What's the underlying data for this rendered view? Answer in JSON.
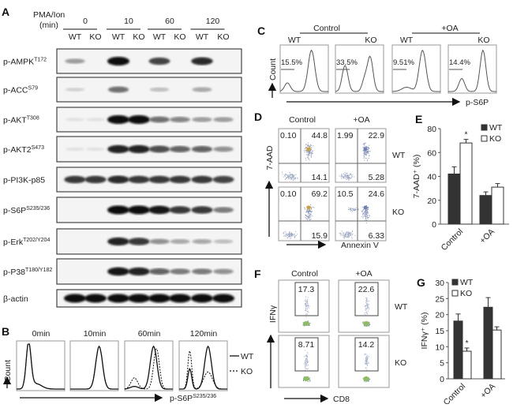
{
  "panel_labels": {
    "a": "A",
    "b": "B",
    "c": "C",
    "d": "D",
    "e": "E",
    "f": "F",
    "g": "G"
  },
  "panel_a": {
    "treatment_label": "PMA/Ion",
    "unit_label": "(min)",
    "timepoints": [
      "0",
      "10",
      "60",
      "120"
    ],
    "genotypes": [
      "WT",
      "KO"
    ],
    "rows": [
      {
        "name": "p-AMPK",
        "site": "T172",
        "bands": [
          0.35,
          0,
          1,
          0,
          0.75,
          0,
          0.85,
          0
        ]
      },
      {
        "name": "p-ACC",
        "site": "S79",
        "bands": [
          0.12,
          0,
          0.55,
          0,
          0.2,
          0,
          0.3,
          0
        ]
      },
      {
        "name": "p-AKT",
        "site": "T308",
        "bands": [
          0.05,
          0.05,
          1,
          1,
          0.55,
          0.45,
          0.35,
          0.35
        ]
      },
      {
        "name": "p-AKT2",
        "site": "S473",
        "bands": [
          0.05,
          0.05,
          0.9,
          0.9,
          0.7,
          0.6,
          0.6,
          0.4
        ]
      },
      {
        "name": "p-PI3K-p85",
        "site": "",
        "bands": [
          0.8,
          0.8,
          0.85,
          0.8,
          0.8,
          0.8,
          0.8,
          0.75
        ]
      },
      {
        "name": "p-S6P",
        "site": "S235/236",
        "bands": [
          0,
          0,
          1,
          1,
          0.95,
          0.8,
          0.8,
          0.5
        ]
      },
      {
        "name": "p-Erk",
        "site": "T202/Y204",
        "bands": [
          0,
          0,
          0.9,
          0.8,
          0.4,
          0.3,
          0.3,
          0.2
        ]
      },
      {
        "name": "p-P38",
        "site": "T180/Y182",
        "bands": [
          0,
          0,
          0.95,
          0.9,
          0.6,
          0.5,
          0.5,
          0.4
        ]
      },
      {
        "name": "β-actin",
        "site": "",
        "bands": [
          1,
          1,
          1,
          1,
          1,
          1,
          1,
          1
        ]
      }
    ]
  },
  "panel_b": {
    "timepoints": [
      "0min",
      "10min",
      "60min",
      "120min"
    ],
    "y_label": "Count",
    "x_label": "p-S6P",
    "x_label_site": "S235/236",
    "legend": [
      {
        "label": "WT",
        "style": "solid"
      },
      {
        "label": "KO",
        "style": "dashed"
      }
    ]
  },
  "panel_c": {
    "groups": [
      "Control",
      "+OA"
    ],
    "genotypes": [
      "WT",
      "KO",
      "WT",
      "KO"
    ],
    "percentages": [
      "15.5%",
      "33.5%",
      "9.51%",
      "14.4%"
    ],
    "y_label": "Count",
    "x_label": "p-S6P"
  },
  "panel_d": {
    "columns": [
      "Control",
      "+OA"
    ],
    "rows": [
      "WT",
      "KO"
    ],
    "quadrants": [
      {
        "ul": "0.10",
        "ur": "44.8",
        "lr": "14.1"
      },
      {
        "ul": "1.99",
        "ur": "22.9",
        "lr": "5.28"
      },
      {
        "ul": "0.10",
        "ur": "69.2",
        "lr": "15.9"
      },
      {
        "ul": "10.5",
        "ur": "24.6",
        "lr": "6.33"
      }
    ],
    "y_label": "7-AAD",
    "x_label": "Annexin V"
  },
  "panel_f": {
    "columns": [
      "Control",
      "+OA"
    ],
    "rows": [
      "WT",
      "KO"
    ],
    "gates": [
      "17.3",
      "22.6",
      "8.71",
      "14.2"
    ],
    "y_label": "IFNγ",
    "x_label": "CD8"
  },
  "colors": {
    "wt": "#333333",
    "ko": "#ffffff",
    "axis": "#555555"
  },
  "chart_data": [
    {
      "type": "bar",
      "panel": "E",
      "categories": [
        "Control",
        "+OA"
      ],
      "series": [
        {
          "name": "WT",
          "values": [
            42,
            24
          ],
          "errors": [
            6,
            3
          ]
        },
        {
          "name": "KO",
          "values": [
            68,
            31
          ],
          "errors": [
            3,
            3
          ]
        }
      ],
      "ylabel": "7-AAD⁺ (%)",
      "ylim": [
        0,
        80
      ],
      "yticks": [
        "0",
        "20",
        "40",
        "60",
        "80"
      ],
      "annotations": [
        "*"
      ],
      "legend_position": "top-right"
    },
    {
      "type": "bar",
      "panel": "G",
      "categories": [
        "Control",
        "+OA"
      ],
      "series": [
        {
          "name": "WT",
          "values": [
            18,
            22.3
          ],
          "errors": [
            2.2,
            3
          ]
        },
        {
          "name": "KO",
          "values": [
            8.6,
            15.2
          ],
          "errors": [
            1,
            1
          ]
        }
      ],
      "ylabel": "IFNγ⁺ (%)",
      "ylim": [
        0,
        30
      ],
      "yticks": [
        "0",
        "5",
        "10",
        "15",
        "20",
        "25",
        "30"
      ],
      "annotations": [
        "*"
      ],
      "legend_position": "top-left"
    }
  ]
}
